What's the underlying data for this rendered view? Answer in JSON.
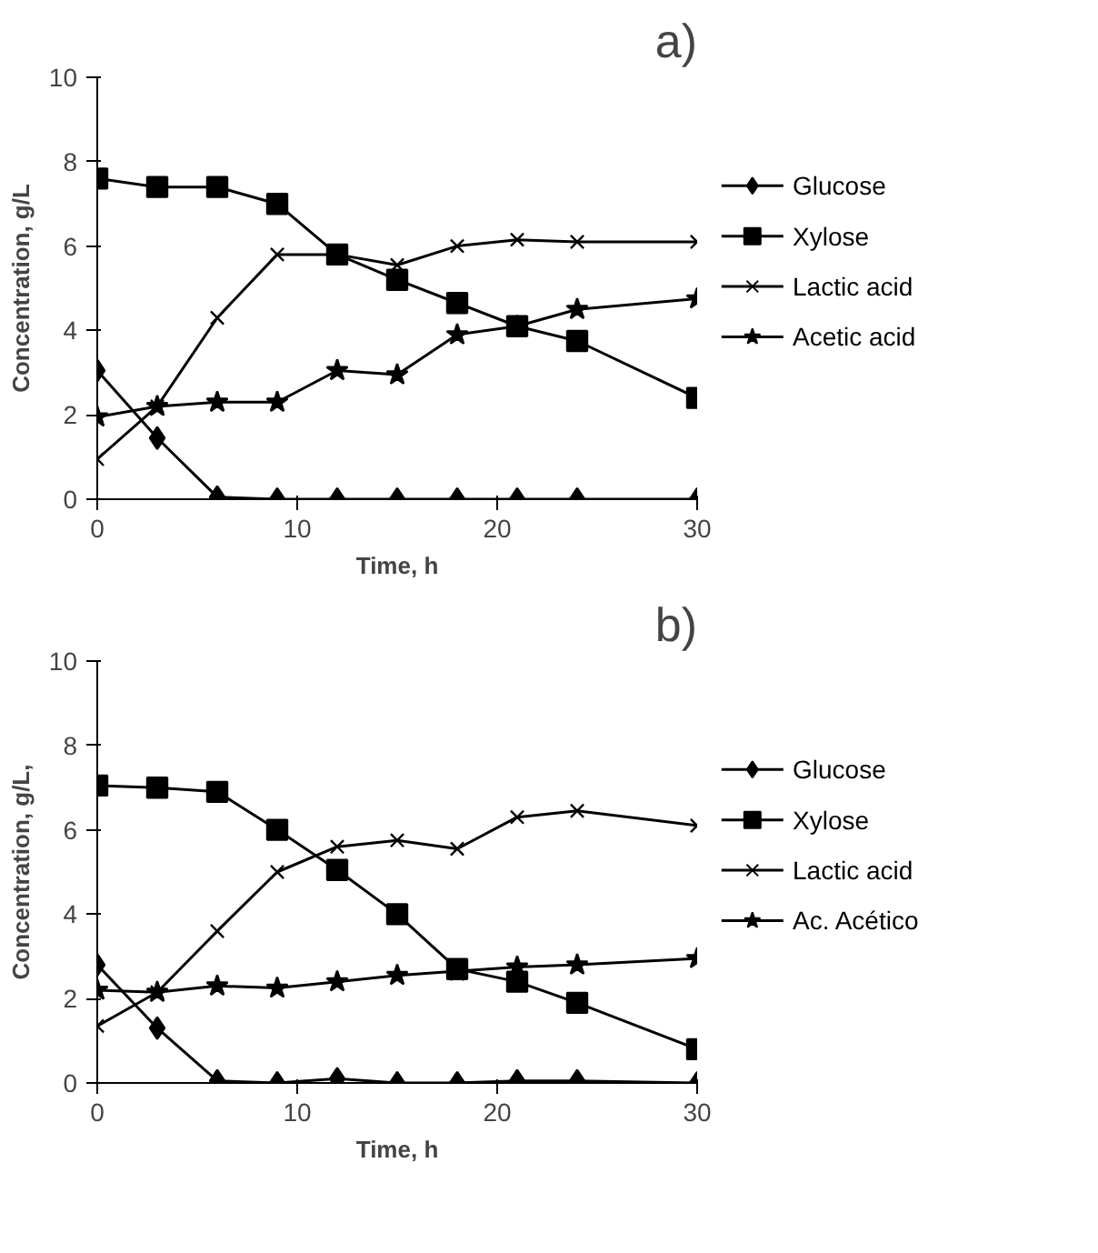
{
  "chart_data": [
    {
      "type": "line",
      "title": "a)",
      "xlabel": "Time, h",
      "ylabel": "Concentration, g/L",
      "x": [
        0,
        3,
        6,
        9,
        12,
        15,
        18,
        21,
        24,
        30
      ],
      "xlim": [
        0,
        30
      ],
      "xticks": [
        0,
        10,
        20,
        30
      ],
      "ylim": [
        0,
        10
      ],
      "yticks": [
        0,
        2,
        4,
        6,
        8,
        10
      ],
      "grid": false,
      "legend": "right",
      "series": [
        {
          "name": "Glucose",
          "color": "#000000",
          "marker": "diamond",
          "values": [
            3.05,
            1.45,
            0.05,
            0,
            0,
            0,
            0,
            0,
            0,
            0
          ]
        },
        {
          "name": "Xylose",
          "color": "#000000",
          "marker": "square",
          "values": [
            7.6,
            7.4,
            7.4,
            7.0,
            5.8,
            5.2,
            4.65,
            4.1,
            3.75,
            2.4
          ]
        },
        {
          "name": "Lactic acid",
          "color": "#000000",
          "marker": "cross",
          "values": [
            0.95,
            2.2,
            4.3,
            5.8,
            5.8,
            5.55,
            6.0,
            6.15,
            6.1,
            6.1
          ]
        },
        {
          "name": "Acetic acid",
          "color": "#000000",
          "marker": "star",
          "values": [
            1.95,
            2.2,
            2.3,
            2.3,
            3.05,
            2.95,
            3.9,
            4.1,
            4.5,
            4.75
          ]
        }
      ]
    },
    {
      "type": "line",
      "title": "b)",
      "xlabel": "Time, h",
      "ylabel": "Concentration, g/L,",
      "x": [
        0,
        3,
        6,
        9,
        12,
        15,
        18,
        21,
        24,
        30
      ],
      "xlim": [
        0,
        30
      ],
      "xticks": [
        0,
        10,
        20,
        30
      ],
      "ylim": [
        0,
        10
      ],
      "yticks": [
        0,
        2,
        4,
        6,
        8,
        10
      ],
      "grid": false,
      "legend": "right",
      "series": [
        {
          "name": "Glucose",
          "color": "#000000",
          "marker": "diamond",
          "values": [
            2.8,
            1.3,
            0.05,
            0,
            0.1,
            0,
            0,
            0.05,
            0.05,
            0
          ]
        },
        {
          "name": "Xylose",
          "color": "#000000",
          "marker": "square",
          "values": [
            7.05,
            7.0,
            6.9,
            6.0,
            5.05,
            4.0,
            2.7,
            2.4,
            1.9,
            0.8
          ]
        },
        {
          "name": "Lactic acid",
          "color": "#000000",
          "marker": "cross",
          "values": [
            1.35,
            2.15,
            3.6,
            5.0,
            5.6,
            5.75,
            5.55,
            6.3,
            6.45,
            6.1
          ]
        },
        {
          "name": "Ac. Acético",
          "color": "#000000",
          "marker": "star",
          "values": [
            2.2,
            2.15,
            2.3,
            2.25,
            2.4,
            2.55,
            2.65,
            2.75,
            2.8,
            2.95
          ]
        }
      ]
    }
  ]
}
